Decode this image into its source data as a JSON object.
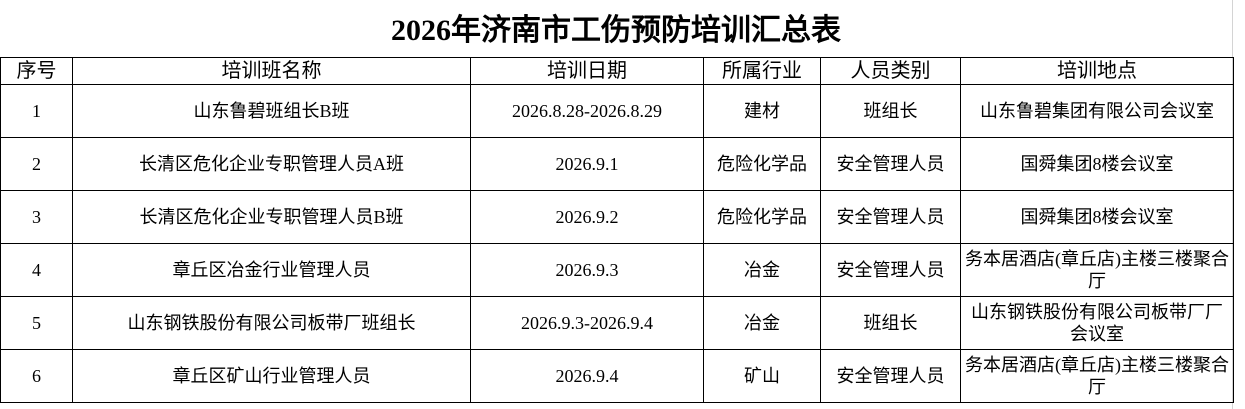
{
  "header": {
    "title": "2026年济南市工伤预防培训汇总表"
  },
  "table": {
    "columns": [
      "序号",
      "培训班名称",
      "培训日期",
      "所属行业",
      "人员类别",
      "培训地点"
    ],
    "rows": [
      [
        "1",
        "山东鲁碧班组长B班",
        "2026.8.28-2026.8.29",
        "建材",
        "班组长",
        "山东鲁碧集团有限公司会议室"
      ],
      [
        "2",
        "长清区危化企业专职管理人员A班",
        "2026.9.1",
        "危险化学品",
        "安全管理人员",
        "国舜集团8楼会议室"
      ],
      [
        "3",
        "长清区危化企业专职管理人员B班",
        "2026.9.2",
        "危险化学品",
        "安全管理人员",
        "国舜集团8楼会议室"
      ],
      [
        "4",
        "章丘区冶金行业管理人员",
        "2026.9.3",
        "冶金",
        "安全管理人员",
        "务本居酒店(章丘店)主楼三楼聚合厅"
      ],
      [
        "5",
        "山东钢铁股份有限公司板带厂班组长",
        "2026.9.3-2026.9.4",
        "冶金",
        "班组长",
        "山东钢铁股份有限公司板带厂厂会议室"
      ],
      [
        "6",
        "章丘区矿山行业管理人员",
        "2026.9.4",
        "矿山",
        "安全管理人员",
        "务本居酒店(章丘店)主楼三楼聚合厅"
      ]
    ]
  }
}
